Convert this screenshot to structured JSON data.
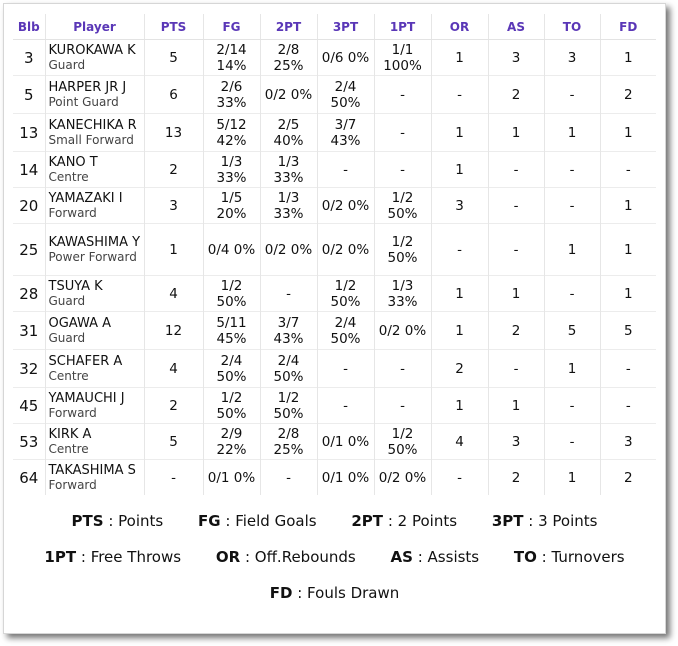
{
  "columns": [
    "Blb",
    "Player",
    "PTS",
    "FG",
    "2PT",
    "3PT",
    "1PT",
    "OR",
    "AS",
    "TO",
    "FD"
  ],
  "rows": [
    {
      "bib": "3",
      "name": "KUROKAWA K",
      "position": "Guard",
      "pts": "5",
      "fg": "2/14 14%",
      "two_pt": "2/8 25%",
      "three_pt": "0/6 0%",
      "one_pt": "1/1 100%",
      "or": "1",
      "as": "3",
      "to": "3",
      "fd": "1"
    },
    {
      "bib": "5",
      "name": "HARPER JR J",
      "position": "Point Guard",
      "pts": "6",
      "fg": "2/6 33%",
      "two_pt": "0/2 0%",
      "three_pt": "2/4 50%",
      "one_pt": "-",
      "or": "-",
      "as": "2",
      "to": "-",
      "fd": "2"
    },
    {
      "bib": "13",
      "name": "KANECHIKA R",
      "position": "Small Forward",
      "pts": "13",
      "fg": "5/12 42%",
      "two_pt": "2/5 40%",
      "three_pt": "3/7 43%",
      "one_pt": "-",
      "or": "1",
      "as": "1",
      "to": "1",
      "fd": "1"
    },
    {
      "bib": "14",
      "name": "KANO T",
      "position": "Centre",
      "pts": "2",
      "fg": "1/3 33%",
      "two_pt": "1/3 33%",
      "three_pt": "-",
      "one_pt": "-",
      "or": "1",
      "as": "-",
      "to": "-",
      "fd": "-"
    },
    {
      "bib": "20",
      "name": "YAMAZAKI I",
      "position": "Forward",
      "pts": "3",
      "fg": "1/5 20%",
      "two_pt": "1/3 33%",
      "three_pt": "0/2 0%",
      "one_pt": "1/2 50%",
      "or": "3",
      "as": "-",
      "to": "-",
      "fd": "1"
    },
    {
      "bib": "25",
      "name": "KAWASHIMA Y",
      "position": "Power Forward",
      "pts": "1",
      "fg": "0/4 0%",
      "two_pt": "0/2 0%",
      "three_pt": "0/2 0%",
      "one_pt": "1/2 50%",
      "or": "-",
      "as": "-",
      "to": "1",
      "fd": "1"
    },
    {
      "bib": "28",
      "name": "TSUYA K",
      "position": "Guard",
      "pts": "4",
      "fg": "1/2 50%",
      "two_pt": "-",
      "three_pt": "1/2 50%",
      "one_pt": "1/3 33%",
      "or": "1",
      "as": "1",
      "to": "-",
      "fd": "1"
    },
    {
      "bib": "31",
      "name": "OGAWA A",
      "position": "Guard",
      "pts": "12",
      "fg": "5/11 45%",
      "two_pt": "3/7 43%",
      "three_pt": "2/4 50%",
      "one_pt": "0/2 0%",
      "or": "1",
      "as": "2",
      "to": "5",
      "fd": "5"
    },
    {
      "bib": "32",
      "name": "SCHAFER A",
      "position": "Centre",
      "pts": "4",
      "fg": "2/4 50%",
      "two_pt": "2/4 50%",
      "three_pt": "-",
      "one_pt": "-",
      "or": "2",
      "as": "-",
      "to": "1",
      "fd": "-"
    },
    {
      "bib": "45",
      "name": "YAMAUCHI J",
      "position": "Forward",
      "pts": "2",
      "fg": "1/2 50%",
      "two_pt": "1/2 50%",
      "three_pt": "-",
      "one_pt": "-",
      "or": "1",
      "as": "1",
      "to": "-",
      "fd": "-"
    },
    {
      "bib": "53",
      "name": "KIRK A",
      "position": "Centre",
      "pts": "5",
      "fg": "2/9 22%",
      "two_pt": "2/8 25%",
      "three_pt": "0/1 0%",
      "one_pt": "1/2 50%",
      "or": "4",
      "as": "3",
      "to": "-",
      "fd": "3"
    },
    {
      "bib": "64",
      "name": "TAKASHIMA S",
      "position": "Forward",
      "pts": "-",
      "fg": "0/1 0%",
      "two_pt": "-",
      "three_pt": "0/1 0%",
      "one_pt": "0/2 0%",
      "or": "-",
      "as": "2",
      "to": "1",
      "fd": "2"
    }
  ],
  "legend": [
    {
      "abbr": "PTS",
      "sep": ":",
      "desc": "Points"
    },
    {
      "abbr": "FG",
      "sep": ":",
      "desc": "Field Goals"
    },
    {
      "abbr": "2PT",
      "sep": ":",
      "desc": "2 Points"
    },
    {
      "abbr": "3PT",
      "sep": ":",
      "desc": "3 Points"
    },
    {
      "abbr": "1PT",
      "sep": ":",
      "desc": "Free Throws"
    },
    {
      "abbr": "OR",
      "sep": ":",
      "desc": "Off.Rebounds"
    },
    {
      "abbr": "AS",
      "sep": ":",
      "desc": "Assists"
    },
    {
      "abbr": "TO",
      "sep": ":",
      "desc": "Turnovers"
    },
    {
      "abbr": "FD",
      "sep": ":",
      "desc": "Fouls Drawn"
    }
  ],
  "colors": {
    "header_text": "#5a37b7",
    "grid": "#e6e6e6"
  }
}
